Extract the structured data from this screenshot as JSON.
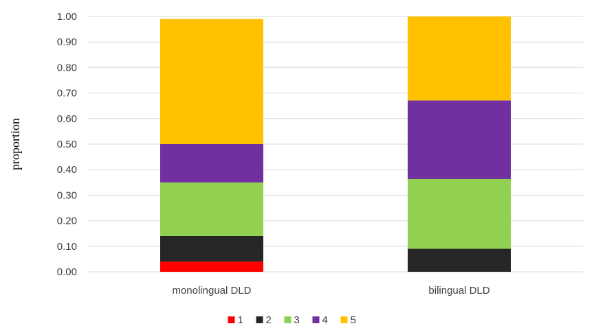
{
  "chart_data": {
    "type": "bar",
    "stacked": true,
    "categories": [
      "monolingual DLD",
      "bilingual DLD"
    ],
    "series": [
      {
        "name": "1",
        "color": "#ff0000",
        "values": [
          0.04,
          0.0
        ]
      },
      {
        "name": "2",
        "color": "#262626",
        "values": [
          0.1,
          0.09
        ]
      },
      {
        "name": "3",
        "color": "#92d050",
        "values": [
          0.21,
          0.273
        ]
      },
      {
        "name": "4",
        "color": "#7030a0",
        "values": [
          0.15,
          0.308
        ]
      },
      {
        "name": "5",
        "color": "#ffc000",
        "values": [
          0.49,
          0.329
        ]
      }
    ],
    "title": "",
    "xlabel": "",
    "ylabel": "proportion",
    "ylim": [
      0,
      1
    ],
    "yticks": [
      "0.00",
      "0.10",
      "0.20",
      "0.30",
      "0.40",
      "0.50",
      "0.60",
      "0.70",
      "0.80",
      "0.90",
      "1.00"
    ],
    "grid": true,
    "legend_position": "bottom"
  }
}
